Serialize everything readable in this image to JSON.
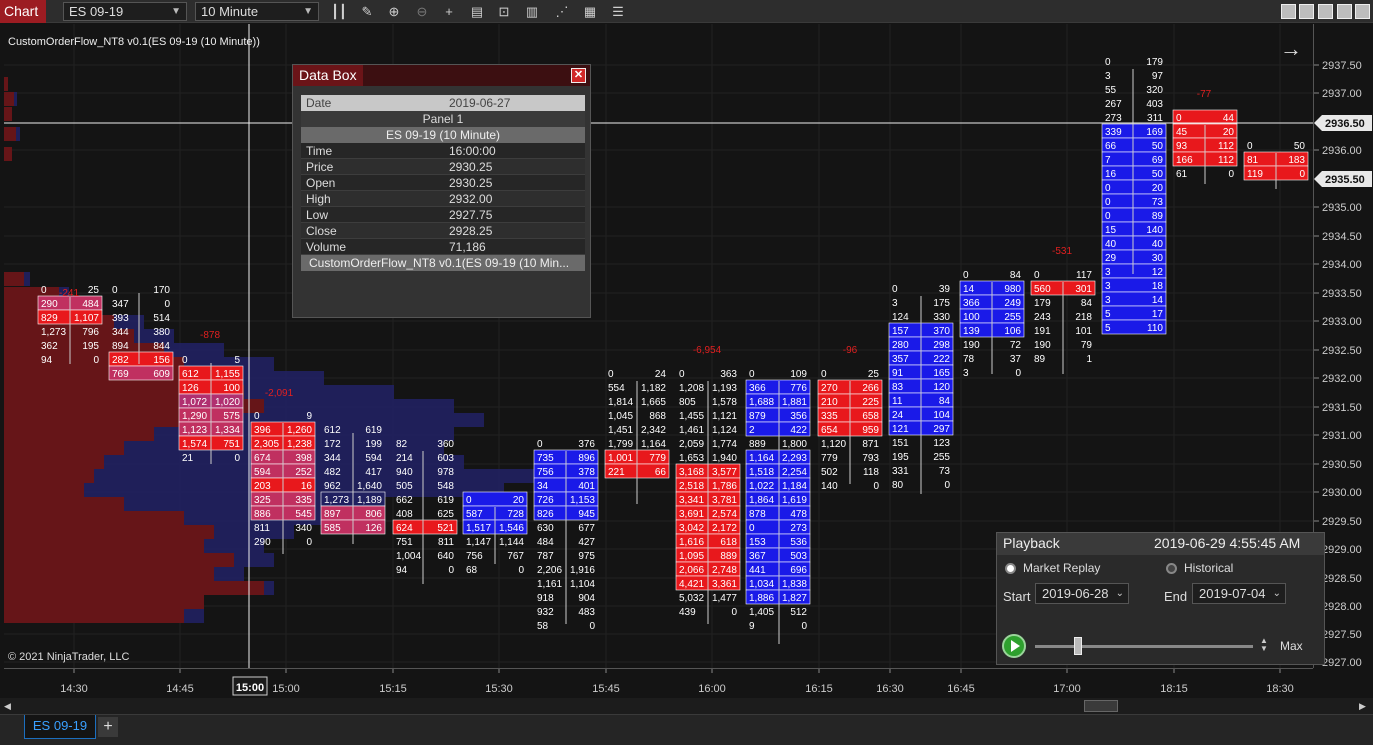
{
  "toolbar": {
    "brand": "Chart",
    "instrument": "ES 09-19",
    "interval": "10 Minute",
    "icons": [
      "bars-icon",
      "pencil-icon",
      "zoom-in-icon",
      "zoom-out-icon",
      "crosshair-icon",
      "properties-icon",
      "templates-icon",
      "strategies-icon",
      "indicators-icon",
      "data-box-icon",
      "list-icon"
    ]
  },
  "chart": {
    "indicator_label": "CustomOrderFlow_NT8 v0.1(ES 09-19 (10 Minute))",
    "copyright": "© 2021 NinjaTrader, LLC",
    "price_ticks": [
      "2937.50",
      "2937.00",
      "2936.00",
      "2935.00",
      "2934.50",
      "2934.00",
      "2933.50",
      "2933.00",
      "2932.50",
      "2932.00",
      "2931.50",
      "2931.00",
      "2930.50",
      "2930.00",
      "2929.50",
      "2929.00",
      "2928.50",
      "2928.00",
      "2927.50",
      "2927.00"
    ],
    "tick_positions_visible": [
      "2937.50",
      "2937.00",
      "2936.00",
      "2935.00",
      "2934.50",
      "2934.00",
      "2933.50",
      "2933.00",
      "2932.50",
      "2932.00",
      "2931.50",
      "2931.00",
      "2930.50",
      "2930.00",
      "2929.50",
      "2929.00",
      "2928.50",
      "2928.00",
      "2927.50",
      "2927.00"
    ],
    "price_flags": [
      "2936.50",
      "2935.50"
    ],
    "time_ticks": [
      "14:30",
      "14:45",
      "15:00",
      "15:15",
      "15:30",
      "15:45",
      "16:00",
      "16:15",
      "16:30",
      "16:45",
      "17:00",
      "18:15",
      "18:30"
    ],
    "cursor_time": "15:00",
    "bar_deltas": [
      {
        "text": "-241",
        "color": "#e02020"
      },
      {
        "text": "-878",
        "color": "#e02020"
      },
      {
        "text": "-2,091",
        "color": "#e02020"
      },
      {
        "text": "-6,954",
        "color": "#e02020"
      },
      {
        "text": "-96",
        "color": "#e02020"
      },
      {
        "text": "-531",
        "color": "#e02020"
      },
      {
        "text": "-77",
        "color": "#e02020"
      }
    ]
  },
  "databox": {
    "title": "Data Box",
    "close": "✕",
    "date_label": "Date",
    "date_value": "2019-06-27",
    "panel": "Panel 1",
    "series": "ES 09-19 (10 Minute)",
    "rows": [
      {
        "label": "Time",
        "value": "16:00:00"
      },
      {
        "label": "Price",
        "value": "2930.25"
      },
      {
        "label": "Open",
        "value": "2930.25"
      },
      {
        "label": "High",
        "value": "2932.00"
      },
      {
        "label": "Low",
        "value": "2927.75"
      },
      {
        "label": "Close",
        "value": "2928.25"
      },
      {
        "label": "Volume",
        "value": "71,186"
      }
    ],
    "indicator": "CustomOrderFlow_NT8 v0.1(ES 09-19 (10 Min..."
  },
  "playback": {
    "title": "Playback",
    "datetime": "2019-06-29 4:55:45 AM",
    "market_replay": "Market Replay",
    "historical": "Historical",
    "start_label": "Start",
    "start_value": "2019-06-28",
    "end_label": "End",
    "end_value": "2019-07-04",
    "max_label": "Max",
    "speed_fraction": 0.18
  },
  "tabs": {
    "active": "ES 09-19",
    "add": "+"
  },
  "colors": {
    "brand": "#9c1c22",
    "bid_red": "#e8181c",
    "ask_blue": "#1a1ae8",
    "profile_red": "#6a1515",
    "profile_blue": "#202060"
  }
}
